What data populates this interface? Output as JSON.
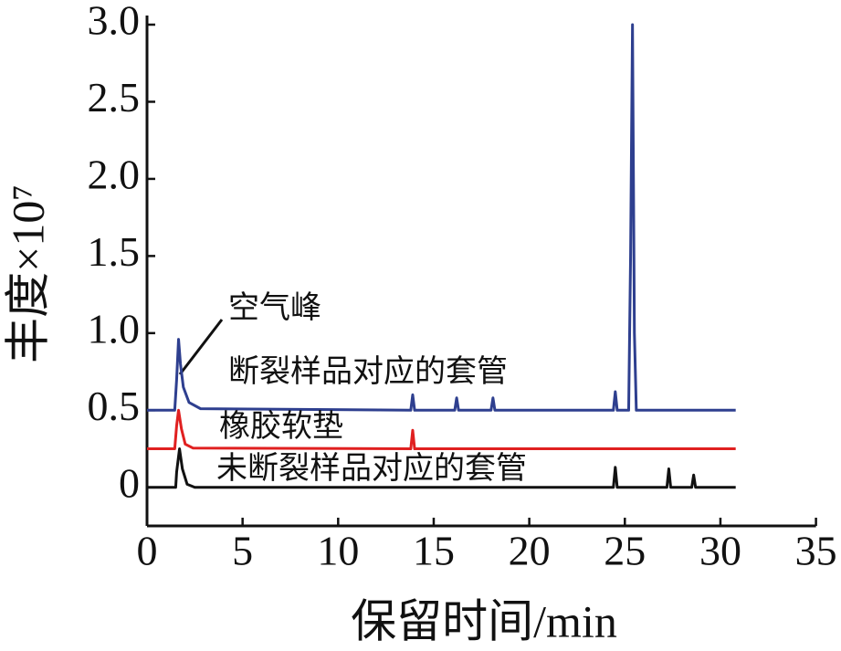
{
  "chart_data": {
    "type": "line",
    "x_label": "保留时间/min",
    "y_label": "丰度×10⁷",
    "annotation": "空气峰",
    "xlim": [
      0,
      35
    ],
    "xticks": [
      0,
      5,
      10,
      15,
      20,
      25,
      30,
      35
    ],
    "ylim": [
      -0.25,
      3.0
    ],
    "yticks": [
      0,
      0.5,
      {
        "value": 1,
        "label": "1.0"
      },
      1.5,
      {
        "value": 2,
        "label": "2.0"
      },
      2.5,
      {
        "value": 3,
        "label": "3.0"
      }
    ],
    "series": [
      {
        "name": "断裂样品对应的套管",
        "color": "#2e3f8f",
        "x": [
          0,
          1.45,
          1.55,
          1.65,
          1.75,
          1.9,
          2.2,
          2.8,
          13.8,
          13.9,
          14.0,
          16.1,
          16.2,
          16.3,
          18.0,
          18.1,
          18.2,
          24.4,
          24.5,
          24.6,
          25.2,
          25.3,
          25.4,
          25.5,
          25.6,
          30.8
        ],
        "values": [
          0.5,
          0.5,
          0.7,
          0.96,
          0.8,
          0.65,
          0.55,
          0.51,
          0.5,
          0.6,
          0.5,
          0.5,
          0.58,
          0.5,
          0.5,
          0.58,
          0.5,
          0.5,
          0.62,
          0.5,
          0.5,
          1.5,
          3.0,
          1.0,
          0.5,
          0.5
        ]
      },
      {
        "name": "橡胶软垫",
        "color": "#e02020",
        "x": [
          0,
          1.45,
          1.55,
          1.65,
          1.8,
          2.0,
          2.4,
          13.8,
          13.9,
          14.0,
          30.8
        ],
        "values": [
          0.25,
          0.25,
          0.4,
          0.5,
          0.38,
          0.28,
          0.255,
          0.25,
          0.37,
          0.25,
          0.25
        ]
      },
      {
        "name": "未断裂样品对应的套管",
        "color": "#111111",
        "x": [
          0,
          1.5,
          1.55,
          1.7,
          1.85,
          2.1,
          2.5,
          24.4,
          24.5,
          24.6,
          27.2,
          27.3,
          27.4,
          28.5,
          28.6,
          28.7,
          30.8
        ],
        "values": [
          0,
          0,
          0.1,
          0.25,
          0.12,
          0.02,
          0,
          0,
          0.13,
          0,
          0,
          0.12,
          0,
          0,
          0.08,
          0,
          0
        ]
      }
    ]
  }
}
